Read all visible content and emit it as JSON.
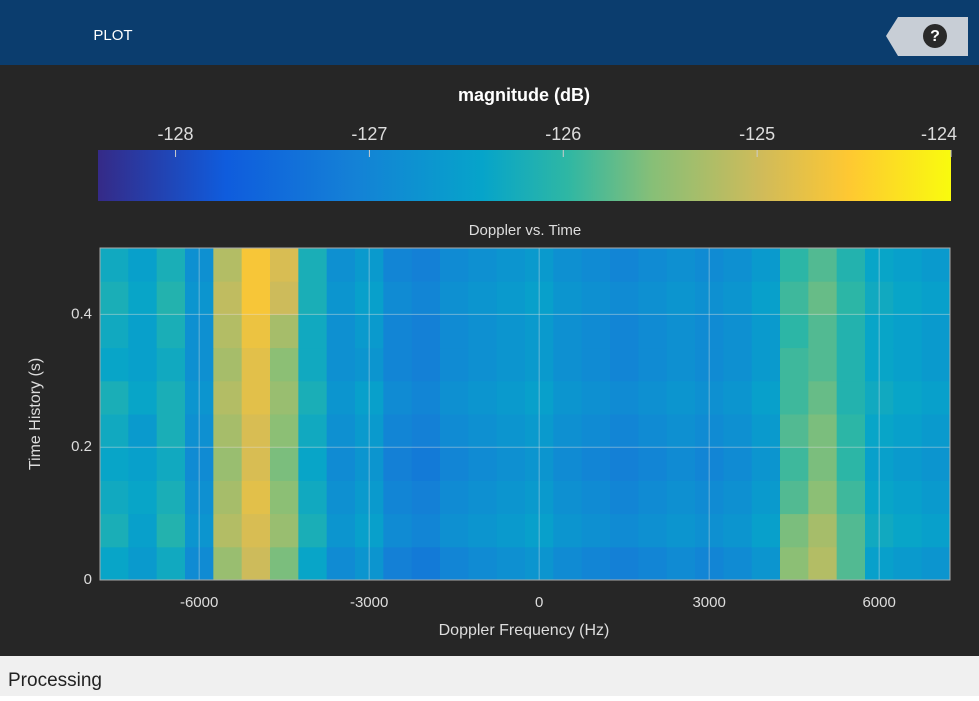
{
  "ui": {
    "tab": "PLOT",
    "help": "?",
    "status": "Processing"
  },
  "chart_data": {
    "type": "heatmap",
    "title": "Doppler vs. Time",
    "colorbar_label": "magnitude (dB)",
    "clim": [
      -128.4,
      -124
    ],
    "cticks": [
      -128,
      -127,
      -126,
      -125,
      -124
    ],
    "xlabel": "Doppler Frequency (Hz)",
    "ylabel": "Time History (s)",
    "xlim": [
      -7750,
      7250
    ],
    "ylim": [
      0,
      0.5
    ],
    "xticks": [
      -6000,
      -3000,
      0,
      3000,
      6000
    ],
    "yticks": [
      0,
      0.2,
      0.4
    ],
    "grid": true,
    "x": [
      -7500,
      -7000,
      -6500,
      -6000,
      -5500,
      -5000,
      -4500,
      -4000,
      -3500,
      -3000,
      -2500,
      -2000,
      -1500,
      -1000,
      -500,
      0,
      500,
      1000,
      1500,
      2000,
      2500,
      3000,
      3500,
      4000,
      4500,
      5000,
      5500,
      6000,
      6500,
      7000
    ],
    "y": [
      0.025,
      0.075,
      0.125,
      0.175,
      0.225,
      0.275,
      0.325,
      0.375,
      0.425,
      0.475
    ],
    "z": [
      [
        -126.4,
        -126.6,
        -126.3,
        -126.9,
        -125.4,
        -125.0,
        -125.6,
        -126.4,
        -126.9,
        -126.7,
        -127.1,
        -127.2,
        -127.0,
        -126.9,
        -126.8,
        -126.7,
        -126.9,
        -127.0,
        -127.1,
        -127.0,
        -126.9,
        -127.0,
        -126.9,
        -126.7,
        -125.5,
        -125.2,
        -125.8,
        -126.5,
        -126.6,
        -126.7
      ],
      [
        -126.2,
        -126.5,
        -126.1,
        -126.7,
        -125.2,
        -124.9,
        -125.4,
        -126.2,
        -126.7,
        -126.5,
        -126.9,
        -127.0,
        -126.8,
        -126.7,
        -126.6,
        -126.5,
        -126.7,
        -126.8,
        -126.9,
        -126.8,
        -126.7,
        -126.8,
        -126.7,
        -126.5,
        -125.6,
        -125.3,
        -125.8,
        -126.3,
        -126.4,
        -126.5
      ],
      [
        -126.3,
        -126.4,
        -126.2,
        -126.8,
        -125.3,
        -124.8,
        -125.5,
        -126.3,
        -126.8,
        -126.6,
        -127.0,
        -127.1,
        -126.9,
        -126.8,
        -126.7,
        -126.6,
        -126.8,
        -126.9,
        -127.0,
        -126.9,
        -126.8,
        -126.9,
        -126.8,
        -126.6,
        -125.8,
        -125.5,
        -125.9,
        -126.4,
        -126.5,
        -126.6
      ],
      [
        -126.4,
        -126.5,
        -126.3,
        -126.9,
        -125.4,
        -124.9,
        -125.6,
        -126.4,
        -126.9,
        -126.7,
        -127.1,
        -127.2,
        -127.0,
        -126.9,
        -126.8,
        -126.7,
        -126.9,
        -127.0,
        -127.1,
        -127.0,
        -126.9,
        -127.0,
        -126.9,
        -126.7,
        -125.9,
        -125.6,
        -126.0,
        -126.5,
        -126.6,
        -126.7
      ],
      [
        -126.3,
        -126.6,
        -126.2,
        -126.8,
        -125.3,
        -124.9,
        -125.5,
        -126.3,
        -126.8,
        -126.6,
        -127.0,
        -127.1,
        -126.9,
        -126.8,
        -126.7,
        -126.6,
        -126.8,
        -126.9,
        -127.0,
        -126.9,
        -126.8,
        -126.9,
        -126.8,
        -126.6,
        -125.8,
        -125.6,
        -126.0,
        -126.4,
        -126.5,
        -126.6
      ],
      [
        -126.2,
        -126.4,
        -126.2,
        -126.7,
        -125.2,
        -124.8,
        -125.4,
        -126.2,
        -126.7,
        -126.5,
        -126.9,
        -127.0,
        -126.8,
        -126.7,
        -126.6,
        -126.5,
        -126.7,
        -126.8,
        -126.9,
        -126.8,
        -126.7,
        -126.8,
        -126.7,
        -126.5,
        -125.9,
        -125.7,
        -126.1,
        -126.3,
        -126.4,
        -126.5
      ],
      [
        -126.4,
        -126.5,
        -126.3,
        -126.8,
        -125.3,
        -124.8,
        -125.5,
        -126.3,
        -126.8,
        -126.7,
        -127.0,
        -127.1,
        -126.9,
        -126.8,
        -126.7,
        -126.6,
        -126.8,
        -126.9,
        -127.0,
        -126.9,
        -126.8,
        -126.9,
        -126.8,
        -126.6,
        -125.9,
        -125.8,
        -126.1,
        -126.4,
        -126.5,
        -126.6
      ],
      [
        -126.3,
        -126.5,
        -126.2,
        -126.8,
        -125.2,
        -124.7,
        -125.3,
        -126.3,
        -126.8,
        -126.6,
        -127.0,
        -127.1,
        -126.9,
        -126.8,
        -126.7,
        -126.6,
        -126.8,
        -126.9,
        -127.0,
        -126.9,
        -126.8,
        -126.9,
        -126.8,
        -126.6,
        -126.0,
        -125.8,
        -126.1,
        -126.4,
        -126.5,
        -126.6
      ],
      [
        -126.2,
        -126.4,
        -126.1,
        -126.7,
        -125.1,
        -124.6,
        -125.0,
        -126.2,
        -126.7,
        -126.5,
        -126.9,
        -127.0,
        -126.8,
        -126.7,
        -126.6,
        -126.5,
        -126.7,
        -126.8,
        -126.9,
        -126.8,
        -126.7,
        -126.8,
        -126.7,
        -126.5,
        -125.9,
        -125.7,
        -126.0,
        -126.3,
        -126.4,
        -126.5
      ],
      [
        -126.3,
        -126.5,
        -126.2,
        -126.8,
        -125.2,
        -124.6,
        -124.9,
        -126.2,
        -126.8,
        -126.6,
        -127.0,
        -127.1,
        -126.9,
        -126.8,
        -126.7,
        -126.6,
        -126.8,
        -126.9,
        -127.0,
        -126.9,
        -126.8,
        -126.9,
        -126.8,
        -126.6,
        -126.0,
        -125.8,
        -126.1,
        -126.4,
        -126.5,
        -126.6
      ]
    ]
  }
}
